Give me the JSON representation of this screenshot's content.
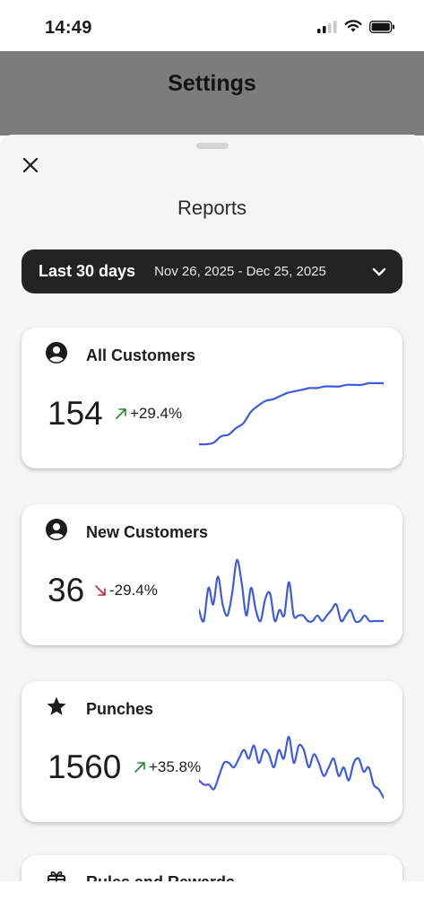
{
  "status_bar": {
    "time": "14:49",
    "icons": [
      "cellular-signal-icon",
      "wifi-icon",
      "battery-icon"
    ]
  },
  "header": {
    "title": "Settings"
  },
  "sheet": {
    "title": "Reports",
    "close_icon": "close-icon",
    "date_range": {
      "label": "Last 30 days",
      "dates": "Nov 26, 2025 - Dec 25, 2025",
      "chevron_icon": "chevron-down-icon"
    },
    "cards": [
      {
        "icon": "person-circle-icon",
        "title": "All Customers",
        "value": "154",
        "trend": "+29.4%",
        "trend_direction": "up",
        "trend_color": "#1e8a2e",
        "spark": [
          4,
          4,
          5,
          9,
          10,
          14,
          17,
          24,
          28,
          31,
          32,
          34,
          36,
          37,
          38,
          39,
          39,
          40,
          40,
          40,
          41,
          41,
          41,
          42,
          42,
          42
        ]
      },
      {
        "icon": "person-circle-icon",
        "title": "New Customers",
        "value": "36",
        "trend": "-29.4%",
        "trend_direction": "down",
        "trend_color": "#c0283c",
        "spark": [
          2,
          0,
          6,
          3,
          8,
          3,
          1,
          5,
          11,
          7,
          1,
          6,
          2,
          0,
          4,
          5,
          0,
          2,
          1,
          7,
          1,
          1,
          1,
          0,
          0,
          1,
          0,
          1,
          2,
          3,
          0,
          1,
          2,
          0,
          0,
          1,
          0,
          0,
          0,
          0
        ]
      },
      {
        "icon": "star-icon",
        "title": "Punches",
        "value": "1560",
        "trend": "+35.8%",
        "trend_direction": "up",
        "trend_color": "#1e8a2e",
        "spark": [
          5,
          4,
          4,
          3,
          6,
          9,
          9,
          8,
          10,
          12,
          10,
          13,
          9,
          12,
          11,
          8,
          12,
          10,
          15,
          9,
          13,
          12,
          8,
          11,
          9,
          6,
          8,
          10,
          6,
          8,
          5,
          9,
          10,
          7,
          8,
          4,
          3,
          1
        ]
      }
    ],
    "partial_card": {
      "icon": "gift-icon",
      "title": "Rules and Rewards"
    },
    "spark_color": "#3d5be0"
  }
}
